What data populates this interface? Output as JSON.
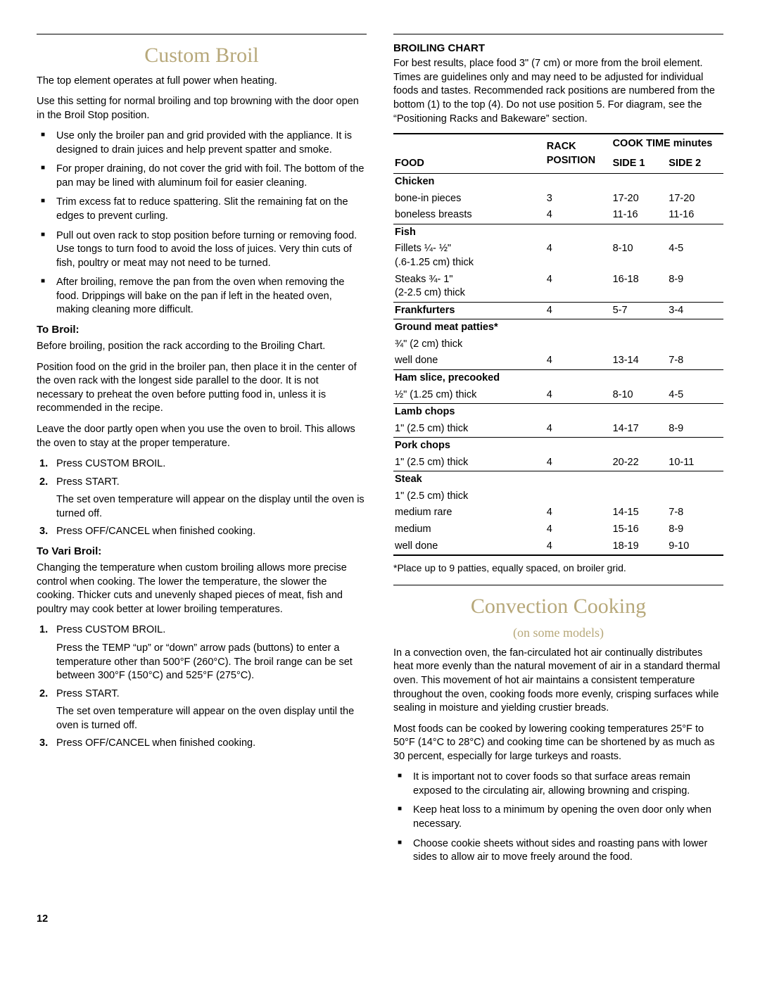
{
  "pageNumber": "12",
  "left": {
    "title": "Custom Broil",
    "p1": "The top element operates at full power when heating.",
    "p2": "Use this setting for normal broiling and top browning with the door open in the Broil Stop position.",
    "bullets": [
      "Use only the broiler pan and grid provided with the appliance. It is designed to drain juices and help prevent spatter and smoke.",
      "For proper draining, do not cover the grid with foil. The bottom of the pan may be lined with aluminum foil for easier cleaning.",
      "Trim excess fat to reduce spattering. Slit the remaining fat on the edges to prevent curling.",
      "Pull out oven rack to stop position before turning or removing food. Use tongs to turn food to avoid the loss of juices. Very thin cuts of fish, poultry or meat may not need to be turned.",
      "After broiling, remove the pan from the oven when removing the food. Drippings will bake on the pan if left in the heated oven, making cleaning more difficult."
    ],
    "toBroil": {
      "h": "To Broil:",
      "p1": "Before broiling, position the rack according to the Broiling Chart.",
      "p2": "Position food on the grid in the broiler pan, then place it in the center of the oven rack with the longest side parallel to the door. It is not necessary to preheat the oven before putting food in, unless it is recommended in the recipe.",
      "p3": "Leave the door partly open when you use the oven to broil. This allows the oven to stay at the proper temperature.",
      "steps": [
        {
          "n": "1.",
          "t": "Press CUSTOM BROIL."
        },
        {
          "n": "2.",
          "t": "Press START.",
          "sub": "The set oven temperature will appear on the display until the oven is turned off."
        },
        {
          "n": "3.",
          "t": "Press OFF/CANCEL when finished cooking."
        }
      ]
    },
    "toVari": {
      "h": "To Vari Broil:",
      "p1": "Changing the temperature when custom broiling allows more precise control when cooking. The lower the temperature, the slower the cooking. Thicker cuts and unevenly shaped pieces of meat, fish and poultry may cook better at lower broiling temperatures.",
      "steps": [
        {
          "n": "1.",
          "t": "Press CUSTOM BROIL.",
          "sub": "Press the TEMP “up” or “down” arrow pads (buttons) to enter a temperature other than 500°F (260°C). The broil range can be set between 300°F (150°C) and 525°F (275°C)."
        },
        {
          "n": "2.",
          "t": "Press START.",
          "sub": "The set oven temperature will appear on the oven display until the oven is turned off."
        },
        {
          "n": "3.",
          "t": "Press OFF/CANCEL when finished cooking."
        }
      ]
    }
  },
  "right": {
    "chartTitle": "BROILING CHART",
    "chartIntro": "For best results, place food 3\" (7 cm) or more from the broil element. Times are guidelines only and may need to be adjusted for individual foods and tastes. Recommended rack positions are numbered from the bottom (1) to the top (4). Do not use position 5. For diagram, see the “Positioning Racks and Bakeware” section.",
    "headers": {
      "food": "FOOD",
      "rack": "RACK POSITION",
      "cook": "COOK TIME minutes",
      "s1": "SIDE 1",
      "s2": "SIDE 2"
    },
    "groups": [
      {
        "title": "Chicken",
        "rows": [
          {
            "f": "bone-in pieces",
            "r": "3",
            "s1": "17-20",
            "s2": "17-20"
          },
          {
            "f": "boneless breasts",
            "r": "4",
            "s1": "11-16",
            "s2": "11-16"
          }
        ]
      },
      {
        "title": "Fish",
        "rows": [
          {
            "f": "Fillets ¼- ½\"\n(.6-1.25 cm) thick",
            "r": "4",
            "s1": "8-10",
            "s2": "4-5"
          },
          {
            "f": "Steaks ¾- 1\"\n(2-2.5 cm) thick",
            "r": "4",
            "s1": "16-18",
            "s2": "8-9"
          }
        ]
      },
      {
        "title": "Frankfurters",
        "titleRow": {
          "r": "4",
          "s1": "5-7",
          "s2": "3-4"
        }
      },
      {
        "title": "Ground meat patties*",
        "rows": [
          {
            "f": "¾\" (2 cm) thick",
            "r": "",
            "s1": "",
            "s2": ""
          },
          {
            "f": "well done",
            "r": "4",
            "s1": "13-14",
            "s2": "7-8"
          }
        ]
      },
      {
        "title": "Ham slice, precooked",
        "rows": [
          {
            "f": "½\" (1.25 cm) thick",
            "r": "4",
            "s1": "8-10",
            "s2": "4-5"
          }
        ]
      },
      {
        "title": "Lamb chops",
        "rows": [
          {
            "f": "1\" (2.5 cm) thick",
            "r": "4",
            "s1": "14-17",
            "s2": "8-9"
          }
        ]
      },
      {
        "title": "Pork chops",
        "rows": [
          {
            "f": "1\" (2.5 cm) thick",
            "r": "4",
            "s1": "20-22",
            "s2": "10-11"
          }
        ]
      },
      {
        "title": "Steak",
        "rows": [
          {
            "f": "1\" (2.5 cm) thick",
            "r": "",
            "s1": "",
            "s2": ""
          },
          {
            "f": "medium rare",
            "r": "4",
            "s1": "14-15",
            "s2": "7-8"
          },
          {
            "f": "medium",
            "r": "4",
            "s1": "15-16",
            "s2": "8-9"
          },
          {
            "f": "well done",
            "r": "4",
            "s1": "18-19",
            "s2": "9-10"
          }
        ]
      }
    ],
    "footnote": "*Place up to 9 patties, equally spaced, on broiler grid.",
    "conv": {
      "title": "Convection Cooking",
      "sub": "(on some models)",
      "p1": "In a convection oven, the fan-circulated hot air continually distributes heat more evenly than the natural movement of air in a standard thermal oven. This movement of hot air maintains a consistent temperature throughout the oven, cooking foods more evenly, crisping surfaces while sealing in moisture and yielding crustier breads.",
      "p2": "Most foods can be cooked by lowering cooking temperatures 25°F to 50°F (14°C to 28°C) and cooking time can be shortened by as much as 30 percent, especially for large turkeys and roasts.",
      "bullets": [
        "It is important not to cover foods so that surface areas remain exposed to the circulating air, allowing browning and crisping.",
        "Keep heat loss to a minimum by opening the oven door only when necessary.",
        "Choose cookie sheets without sides and roasting pans with lower sides to allow air to move freely around the food."
      ]
    }
  }
}
